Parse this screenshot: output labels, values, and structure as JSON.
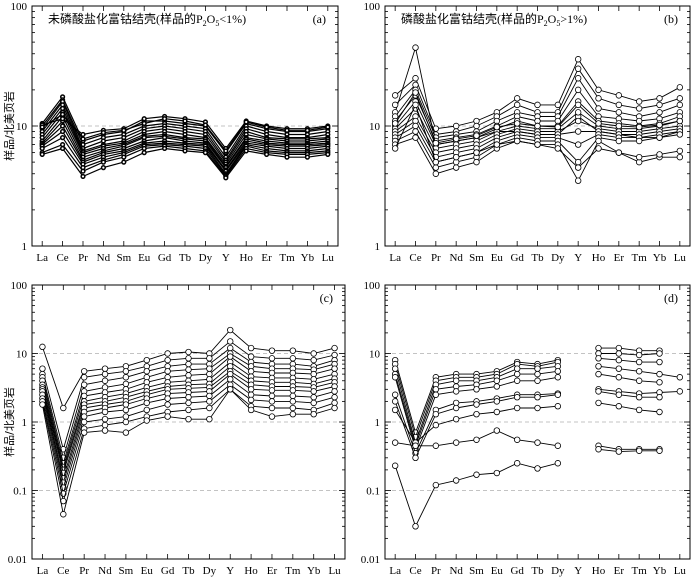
{
  "figure": {
    "ylabel": "样品/北美页岩",
    "elements": [
      "La",
      "Ce",
      "Pr",
      "Nd",
      "Sm",
      "Eu",
      "Gd",
      "Tb",
      "Dy",
      "Y",
      "Ho",
      "Er",
      "Tm",
      "Yb",
      "Lu"
    ]
  },
  "chart_data": [
    {
      "id": "a",
      "type": "line",
      "panel_label": "(a)",
      "title_main": "未磷酸盐化富钴结壳(样品的P",
      "title_sub1": "2",
      "title_mid": "O",
      "title_sub2": "5",
      "title_end": "<1%)",
      "ylabel": "样品/北美页岩",
      "ylim": [
        1,
        100
      ],
      "yscale": "log",
      "yticks": [
        "1",
        "10",
        "100"
      ],
      "grid": true,
      "categories": [
        "La",
        "Ce",
        "Pr",
        "Nd",
        "Sm",
        "Eu",
        "Gd",
        "Tb",
        "Dy",
        "Y",
        "Ho",
        "Er",
        "Tm",
        "Yb",
        "Lu"
      ],
      "marker": "small-filled",
      "series": [
        {
          "values": [
            10.5,
            17.5,
            7.5,
            8.5,
            9,
            11,
            11,
            10.5,
            10,
            6,
            10.5,
            9.5,
            9,
            9,
            9.5
          ]
        },
        {
          "values": [
            10,
            16.5,
            7,
            8,
            8.5,
            10,
            10.5,
            10,
            9.5,
            5.5,
            10,
            9,
            8.5,
            8.5,
            9
          ]
        },
        {
          "values": [
            9.5,
            16,
            6.5,
            7.5,
            8,
            9.5,
            10,
            9.5,
            9,
            5.2,
            9.5,
            8.5,
            8,
            8,
            8.5
          ]
        },
        {
          "values": [
            9,
            15,
            6.2,
            7,
            7.5,
            9,
            9.5,
            9,
            8.5,
            5,
            9,
            8,
            7.8,
            7.8,
            8
          ]
        },
        {
          "values": [
            8.5,
            14,
            6,
            6.8,
            7.2,
            8.5,
            9,
            8.5,
            8,
            4.8,
            8.5,
            7.8,
            7.5,
            7.5,
            7.8
          ]
        },
        {
          "values": [
            8,
            13,
            5.8,
            6.5,
            7,
            8.2,
            8.5,
            8,
            7.8,
            4.6,
            8,
            7.5,
            7.2,
            7.2,
            7.5
          ]
        },
        {
          "values": [
            7.5,
            12,
            5.5,
            6.2,
            6.8,
            8,
            8.2,
            7.8,
            7.5,
            4.5,
            7.8,
            7.2,
            7,
            7,
            7.2
          ]
        },
        {
          "values": [
            7.2,
            11,
            5.2,
            6,
            6.5,
            7.5,
            8,
            7.5,
            7.2,
            4.3,
            7.5,
            7,
            6.8,
            6.8,
            7
          ]
        },
        {
          "values": [
            7,
            10,
            5,
            5.8,
            6.2,
            7.2,
            7.5,
            7.2,
            7,
            4.2,
            7.2,
            6.8,
            6.5,
            6.5,
            6.8
          ]
        },
        {
          "values": [
            6.8,
            9,
            4.8,
            5.5,
            6,
            7,
            7.2,
            7,
            6.8,
            4,
            7,
            6.5,
            6.2,
            6.2,
            6.5
          ]
        },
        {
          "values": [
            6.5,
            8,
            4.5,
            5.2,
            5.8,
            6.8,
            7,
            6.8,
            6.5,
            3.9,
            6.8,
            6.2,
            6,
            6,
            6.2
          ]
        },
        {
          "values": [
            6,
            7,
            4.2,
            5,
            5.5,
            6.5,
            6.8,
            6.5,
            6.2,
            3.8,
            6.5,
            6,
            5.8,
            5.8,
            6
          ]
        },
        {
          "values": [
            5.8,
            6.5,
            3.8,
            4.5,
            5,
            6,
            6.5,
            6.2,
            6,
            3.7,
            6.2,
            5.8,
            5.5,
            5.5,
            5.8
          ]
        },
        {
          "values": [
            10.2,
            11.5,
            8.5,
            9.2,
            9.5,
            11.5,
            12,
            11.5,
            10.8,
            6.5,
            11,
            10,
            9.5,
            9.5,
            10
          ]
        },
        {
          "values": [
            9.8,
            12.5,
            7.8,
            8.8,
            9.2,
            10.5,
            11.5,
            11,
            10.2,
            6.2,
            10.8,
            9.8,
            9.2,
            9.2,
            9.8
          ]
        }
      ]
    },
    {
      "id": "b",
      "type": "line",
      "panel_label": "(b)",
      "title_main": "磷酸盐化富钴结壳(样品的P",
      "title_sub1": "2",
      "title_mid": "O",
      "title_sub2": "5",
      "title_end": ">1%)",
      "ylim": [
        1,
        100
      ],
      "yscale": "log",
      "yticks": [
        "1",
        "10",
        "100"
      ],
      "grid": true,
      "categories": [
        "La",
        "Ce",
        "Pr",
        "Nd",
        "Sm",
        "Eu",
        "Gd",
        "Tb",
        "Dy",
        "Y",
        "Ho",
        "Er",
        "Tm",
        "Yb",
        "Lu"
      ],
      "marker": "open-circle",
      "series": [
        {
          "values": [
            13,
            45,
            7,
            7.5,
            8,
            9,
            9,
            8.5,
            8.5,
            12,
            9,
            8.5,
            8,
            8,
            9
          ]
        },
        {
          "values": [
            18,
            25,
            9.5,
            10,
            11,
            13,
            17,
            15,
            15,
            36,
            20,
            18,
            16,
            17,
            21
          ]
        },
        {
          "values": [
            15,
            22,
            8.5,
            9,
            10,
            12,
            15,
            13,
            13,
            30,
            17,
            15,
            14,
            15,
            17
          ]
        },
        {
          "values": [
            12,
            20,
            8,
            8.5,
            9,
            11,
            13,
            12,
            12,
            25,
            14,
            13,
            12,
            13,
            15
          ]
        },
        {
          "values": [
            11,
            18,
            7.5,
            8,
            8.5,
            10,
            12,
            11,
            11,
            20,
            12,
            11.5,
            11,
            11.5,
            13
          ]
        },
        {
          "values": [
            10,
            16,
            7,
            7.5,
            8,
            9.5,
            11,
            10,
            10,
            16,
            11,
            10.5,
            10,
            10.5,
            12
          ]
        },
        {
          "values": [
            9.5,
            14,
            6.5,
            7,
            7.5,
            9,
            10,
            9.5,
            9.5,
            13,
            10,
            9.5,
            9.5,
            10,
            11
          ]
        },
        {
          "values": [
            9,
            12,
            6,
            6.5,
            7,
            8.5,
            9.5,
            9,
            9,
            11,
            9.5,
            9,
            9,
            9.5,
            10
          ]
        },
        {
          "values": [
            8.5,
            11,
            5.5,
            6,
            6.5,
            8,
            9,
            8.5,
            8.5,
            9,
            9,
            8.5,
            8.5,
            9,
            9.5
          ]
        },
        {
          "values": [
            8,
            10,
            5,
            5.5,
            6,
            7.5,
            8.5,
            8,
            8,
            7,
            8.5,
            8,
            8,
            8.5,
            9
          ]
        },
        {
          "values": [
            7.5,
            9,
            4.5,
            5,
            5.5,
            7,
            8,
            7.5,
            7.5,
            5,
            8,
            7.5,
            7.5,
            8,
            8.5
          ]
        },
        {
          "values": [
            7,
            8,
            4,
            4.5,
            5,
            6.5,
            7.5,
            7,
            7,
            3.5,
            7.5,
            6,
            5,
            5.5,
            5.5
          ]
        },
        {
          "values": [
            6.5,
            15,
            5,
            5.5,
            6,
            7,
            7.5,
            7,
            6.5,
            4.5,
            6.5,
            6,
            5.5,
            5.8,
            6.2
          ]
        },
        {
          "values": [
            10.5,
            19,
            7.2,
            7.8,
            8.3,
            9.8,
            10.5,
            10,
            9.8,
            15,
            10.5,
            10,
            9.8,
            10.2,
            11
          ]
        }
      ]
    },
    {
      "id": "c",
      "type": "line",
      "panel_label": "(c)",
      "ylabel": "样品/北美页岩",
      "ylim": [
        0.01,
        100
      ],
      "yscale": "log",
      "yticks": [
        "0.01",
        "0.1",
        "1",
        "10",
        "100"
      ],
      "grid": true,
      "categories": [
        "La",
        "Ce",
        "Pr",
        "Nd",
        "Sm",
        "Eu",
        "Gd",
        "Tb",
        "Dy",
        "Y",
        "Ho",
        "Er",
        "Tm",
        "Yb",
        "Lu"
      ],
      "marker": "open-circle",
      "series": [
        {
          "values": [
            12.5,
            1.6,
            5.5,
            6,
            6.5,
            8,
            10,
            10.5,
            10,
            22,
            12,
            11,
            11,
            10,
            12
          ]
        },
        {
          "values": [
            6,
            0.4,
            4.5,
            5,
            5.5,
            6.5,
            8,
            8.5,
            8.5,
            15,
            9,
            8.5,
            8.5,
            8,
            9.5
          ]
        },
        {
          "values": [
            5,
            0.3,
            3.5,
            4,
            4.5,
            5.5,
            6.5,
            7,
            7,
            12,
            7.5,
            7,
            7,
            6.5,
            8
          ]
        },
        {
          "values": [
            4.5,
            0.25,
            2.8,
            3.2,
            3.6,
            4.5,
            5.5,
            5.8,
            6,
            10,
            6.5,
            6,
            6,
            5.8,
            7
          ]
        },
        {
          "values": [
            4,
            0.22,
            2.4,
            2.7,
            3,
            3.8,
            4.5,
            4.8,
            5,
            9,
            5.5,
            5.2,
            5.2,
            5,
            6
          ]
        },
        {
          "values": [
            3.5,
            0.2,
            2,
            2.3,
            2.6,
            3.2,
            3.8,
            4,
            4.2,
            7.5,
            4.6,
            4.4,
            4.4,
            4.2,
            5
          ]
        },
        {
          "values": [
            3.2,
            0.18,
            1.8,
            2,
            2.3,
            2.8,
            3.3,
            3.5,
            3.6,
            6.5,
            4,
            3.8,
            3.8,
            3.6,
            4.3
          ]
        },
        {
          "values": [
            3,
            0.15,
            1.6,
            1.8,
            2,
            2.5,
            3,
            3.1,
            3.2,
            5.5,
            3.5,
            3.3,
            3.3,
            3.2,
            3.8
          ]
        },
        {
          "values": [
            2.8,
            0.13,
            1.4,
            1.6,
            1.8,
            2.2,
            2.6,
            2.7,
            2.8,
            5,
            3,
            2.9,
            2.9,
            2.8,
            3.3
          ]
        },
        {
          "values": [
            2.5,
            0.11,
            1.2,
            1.4,
            1.5,
            1.9,
            2.2,
            2.3,
            2.4,
            4.2,
            2.5,
            2.4,
            2.4,
            2.3,
            2.8
          ]
        },
        {
          "values": [
            2.2,
            0.09,
            1,
            1.1,
            1.2,
            1.5,
            1.8,
            1.9,
            2,
            3.5,
            2.1,
            2,
            2,
            1.9,
            2.3
          ]
        },
        {
          "values": [
            2,
            0.07,
            0.8,
            0.9,
            1,
            1.2,
            1.4,
            1.5,
            1.6,
            3,
            1.7,
            1.6,
            1.6,
            1.5,
            1.9
          ]
        },
        {
          "values": [
            1.8,
            0.045,
            0.7,
            0.75,
            0.7,
            1.05,
            1.2,
            1.1,
            1.1,
            3,
            1.5,
            1.2,
            1.3,
            1.3,
            1.6
          ]
        }
      ]
    },
    {
      "id": "d",
      "type": "line",
      "panel_label": "(d)",
      "ylim": [
        0.01,
        100
      ],
      "yscale": "log",
      "yticks": [
        "0.01",
        "0.1",
        "1",
        "10",
        "100"
      ],
      "grid": true,
      "categories": [
        "La",
        "Ce",
        "Pr",
        "Nd",
        "Sm",
        "Eu",
        "Gd",
        "Tb",
        "Dy",
        "Y",
        "Ho",
        "Er",
        "Tm",
        "Yb",
        "Lu"
      ],
      "marker": "open-circle",
      "series": [
        {
          "values": [
            8,
            0.7,
            4.5,
            5,
            5,
            5.5,
            7.5,
            7,
            8,
            null,
            12,
            12,
            11,
            11,
            null
          ]
        },
        {
          "values": [
            7,
            0.6,
            4,
            4.5,
            4.5,
            5,
            7,
            6.5,
            7.5,
            null,
            10,
            10,
            9.5,
            10,
            null
          ]
        },
        {
          "values": [
            6,
            0.5,
            3.5,
            4,
            4,
            4.5,
            6,
            6,
            6.5,
            null,
            8.5,
            8,
            7.5,
            7.5,
            null
          ]
        },
        {
          "values": [
            5,
            0.45,
            3,
            3.3,
            3.5,
            4,
            5,
            5,
            5.5,
            null,
            6.5,
            6,
            5.5,
            5,
            4.5
          ]
        },
        {
          "values": [
            4.5,
            0.4,
            2.5,
            2.8,
            3,
            3.3,
            4,
            4,
            4.5,
            null,
            5,
            4.5,
            4,
            3.8,
            null
          ]
        },
        {
          "values": [
            2.5,
            0.35,
            1.5,
            1.9,
            2,
            2.2,
            2.5,
            2.5,
            2.6,
            null,
            3,
            2.8,
            2.6,
            2.7,
            2.8
          ]
        },
        {
          "values": [
            2,
            0.3,
            1.3,
            1.6,
            1.8,
            2,
            2.3,
            2.3,
            2.5,
            null,
            2.8,
            2.5,
            2.3,
            2.3,
            null
          ]
        },
        {
          "values": [
            1.5,
            0.5,
            0.9,
            1.1,
            1.3,
            1.4,
            1.6,
            1.6,
            1.7,
            null,
            1.9,
            1.7,
            1.5,
            1.4,
            null
          ]
        },
        {
          "values": [
            0.5,
            0.45,
            0.45,
            0.5,
            0.55,
            0.75,
            0.55,
            0.5,
            0.45,
            null,
            0.45,
            0.4,
            0.4,
            0.4,
            null
          ]
        },
        {
          "values": [
            0.23,
            0.03,
            0.12,
            0.14,
            0.17,
            0.18,
            0.25,
            0.21,
            0.25,
            null,
            0.4,
            0.37,
            0.38,
            0.38,
            null
          ]
        }
      ]
    }
  ]
}
